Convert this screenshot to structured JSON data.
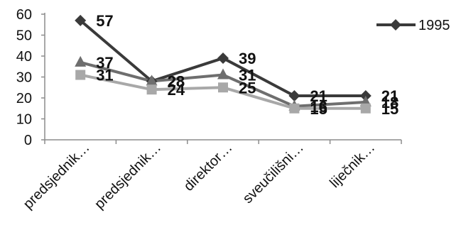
{
  "chart_data": {
    "type": "line",
    "categories": [
      "predsjednik…",
      "predsjednik…",
      "direktor…",
      "sveučilišni…",
      "liječnik…"
    ],
    "ylim": [
      0,
      60
    ],
    "yticks": [
      0,
      10,
      20,
      30,
      40,
      50,
      60
    ],
    "grid": false,
    "legend_position": "top-right",
    "legend": [
      "1995"
    ],
    "series": [
      {
        "name": "1995",
        "marker": "diamond",
        "color": "#3a3a3a",
        "values": [
          57,
          28,
          39,
          21,
          21
        ],
        "connected": [
          false,
          true,
          true,
          true,
          true
        ]
      },
      {
        "marker": "triangle",
        "color": "#6e6e6e",
        "values": [
          37,
          28,
          31,
          16,
          18
        ],
        "connected": [
          true,
          true,
          true,
          true,
          true
        ]
      },
      {
        "marker": "square",
        "color": "#a8a8a8",
        "values": [
          31,
          24,
          25,
          15,
          15
        ],
        "connected": [
          true,
          true,
          true,
          true,
          true
        ]
      }
    ]
  }
}
